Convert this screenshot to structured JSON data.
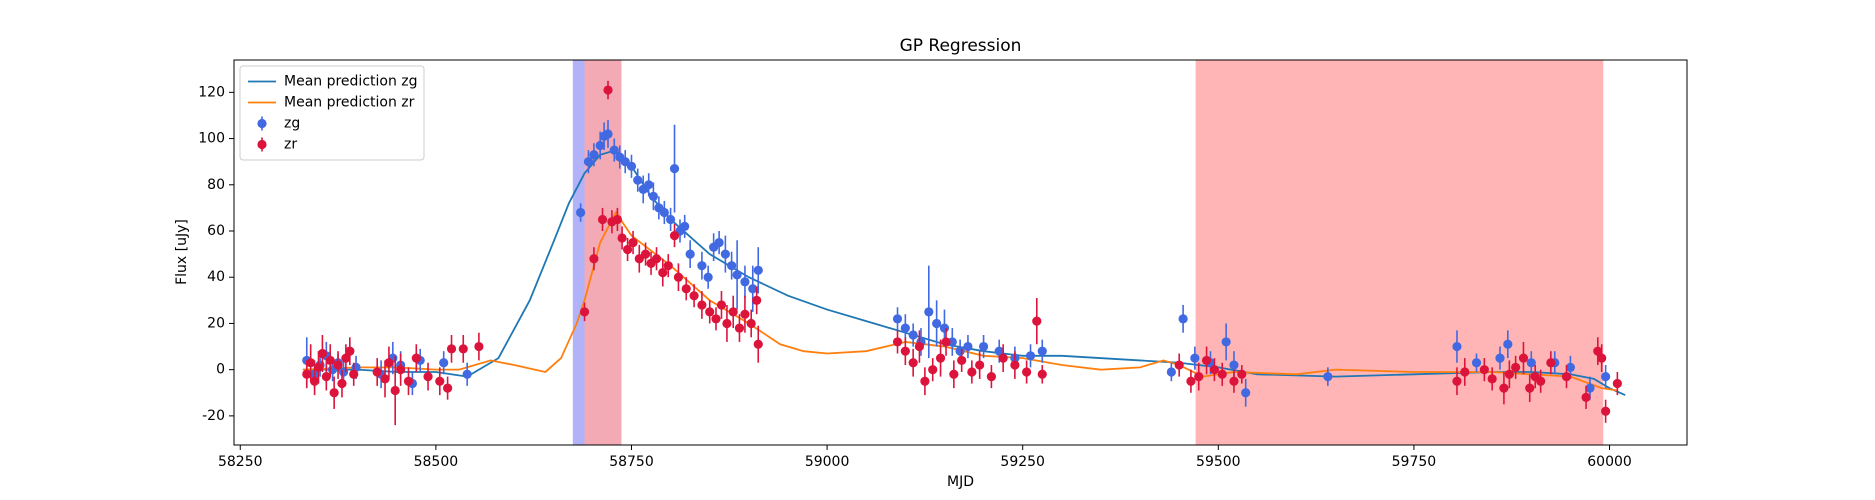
{
  "chart_data": {
    "type": "line",
    "title": "GP Regression",
    "x_label": "MJD",
    "y_label": "Flux [uJy]",
    "xlim": [
      58242,
      60099
    ],
    "ylim": [
      -32.6,
      134
    ],
    "xticks": [
      58250,
      58500,
      58750,
      59000,
      59250,
      59500,
      59750,
      60000
    ],
    "yticks": [
      -20,
      0,
      20,
      40,
      60,
      80,
      100,
      120
    ],
    "legend": "upper left",
    "spans": [
      {
        "xmin": 58675,
        "xmax": 58737,
        "color": "#a5a5f7"
      },
      {
        "xmin": 58690,
        "xmax": 58737,
        "color": "#ffa8a8"
      },
      {
        "xmin": 59471,
        "xmax": 59992,
        "color": "#ffa8a8"
      }
    ],
    "series": [
      {
        "name": "Mean prediction zg",
        "kind": "line",
        "color": "#1f77b4",
        "x": [
          58330,
          58400,
          58450,
          58500,
          58540,
          58580,
          58620,
          58650,
          58670,
          58690,
          58710,
          58730,
          58750,
          58775,
          58800,
          58850,
          58900,
          58950,
          59000,
          59050,
          59100,
          59150,
          59200,
          59250,
          59300,
          59400,
          59450,
          59500,
          59550,
          59650,
          59750,
          59850,
          59900,
          59950,
          59980,
          60000,
          60020
        ],
        "values": [
          0,
          0,
          -1,
          -1,
          -3,
          5,
          30,
          55,
          72,
          85,
          93,
          95,
          88,
          75,
          65,
          50,
          40,
          32,
          26,
          21,
          16,
          11,
          8,
          6,
          6,
          4,
          3,
          1,
          -2,
          -3,
          -2,
          -1,
          -1,
          -2,
          -4,
          -8,
          -11
        ]
      },
      {
        "name": "Mean prediction zr",
        "kind": "line",
        "color": "#ff7f0e",
        "x": [
          58330,
          58400,
          58450,
          58500,
          58530,
          58570,
          58600,
          58640,
          58660,
          58680,
          58690,
          58710,
          58730,
          58750,
          58800,
          58850,
          58900,
          58940,
          58970,
          59000,
          59050,
          59100,
          59150,
          59200,
          59250,
          59300,
          59350,
          59400,
          59430,
          59450,
          59480,
          59520,
          59600,
          59650,
          59750,
          59850,
          59950,
          59990,
          60010
        ],
        "values": [
          0,
          1,
          1,
          0,
          0,
          4,
          2,
          -1,
          5,
          20,
          30,
          55,
          68,
          58,
          45,
          30,
          20,
          11,
          8,
          7,
          8,
          12,
          10,
          6,
          5,
          2,
          0,
          1,
          4,
          2,
          -3,
          -1,
          -2,
          0,
          -1,
          -1,
          -3,
          -8,
          -9
        ]
      },
      {
        "name": "zg",
        "kind": "errorbar",
        "color": "#4169e1",
        "x": [
          58335,
          58345,
          58352,
          58360,
          58368,
          58375,
          58382,
          58390,
          58398,
          58430,
          58445,
          58455,
          58470,
          58480,
          58510,
          58540,
          58685,
          58695,
          58702,
          58710,
          58715,
          58720,
          58728,
          58735,
          58742,
          58750,
          58758,
          58765,
          58772,
          58778,
          58785,
          58792,
          58800,
          58805,
          58812,
          58818,
          58825,
          58840,
          58848,
          58855,
          58862,
          58870,
          58878,
          58885,
          58895,
          58905,
          58912,
          59090,
          59100,
          59110,
          59120,
          59130,
          59140,
          59150,
          59160,
          59170,
          59180,
          59200,
          59220,
          59240,
          59260,
          59275,
          59440,
          59455,
          59470,
          59490,
          59510,
          59520,
          59535,
          59640,
          59805,
          59830,
          59860,
          59870,
          59900,
          59930,
          59950,
          59975,
          59995
        ],
        "values": [
          4,
          -2,
          2,
          6,
          0,
          3,
          -1,
          8,
          1,
          -2,
          5,
          2,
          -6,
          4,
          3,
          -2,
          68,
          90,
          93,
          97,
          101,
          102,
          95,
          92,
          90,
          88,
          82,
          78,
          80,
          75,
          70,
          68,
          65,
          87,
          60,
          62,
          50,
          45,
          40,
          53,
          55,
          50,
          45,
          41,
          38,
          35,
          43,
          22,
          18,
          15,
          12,
          25,
          20,
          18,
          12,
          8,
          10,
          10,
          8,
          5,
          6,
          8,
          -1,
          22,
          5,
          3,
          12,
          2,
          -10,
          -3,
          10,
          3,
          5,
          11,
          3,
          3,
          1,
          -8,
          -3
        ],
        "errors": [
          10,
          6,
          5,
          6,
          5,
          4,
          5,
          4,
          5,
          6,
          7,
          6,
          5,
          5,
          5,
          5,
          4,
          5,
          5,
          6,
          6,
          6,
          5,
          5,
          5,
          5,
          5,
          6,
          5,
          6,
          5,
          5,
          5,
          19,
          5,
          5,
          6,
          6,
          5,
          6,
          5,
          8,
          6,
          15,
          7,
          10,
          10,
          5,
          6,
          5,
          6,
          20,
          10,
          8,
          6,
          5,
          5,
          5,
          5,
          5,
          5,
          5,
          4,
          6,
          5,
          5,
          8,
          6,
          6,
          4,
          7,
          4,
          5,
          6,
          5,
          5,
          5,
          5,
          5
        ]
      },
      {
        "name": "zr",
        "kind": "errorbar",
        "color": "#dc143c",
        "x": [
          58335,
          58340,
          58345,
          58350,
          58355,
          58360,
          58365,
          58370,
          58375,
          58380,
          58385,
          58390,
          58395,
          58425,
          58435,
          58440,
          58448,
          58455,
          58465,
          58475,
          58490,
          58505,
          58515,
          58520,
          58535,
          58555,
          58690,
          58702,
          58713,
          58720,
          58725,
          58732,
          58738,
          58745,
          58752,
          58760,
          58768,
          58775,
          58782,
          58790,
          58797,
          58805,
          58810,
          58820,
          58830,
          58840,
          58850,
          58858,
          58865,
          58872,
          58880,
          58888,
          58895,
          58903,
          58910,
          58912,
          59090,
          59100,
          59110,
          59118,
          59125,
          59135,
          59145,
          59152,
          59162,
          59172,
          59185,
          59195,
          59210,
          59225,
          59240,
          59255,
          59268,
          59275,
          59450,
          59465,
          59475,
          59485,
          59495,
          59505,
          59520,
          59530,
          59805,
          59815,
          59840,
          59850,
          59865,
          59872,
          59880,
          59890,
          59898,
          59905,
          59912,
          59925,
          59945,
          59970,
          59985,
          59990,
          59995,
          60010
        ],
        "values": [
          -2,
          3,
          -5,
          1,
          7,
          -3,
          4,
          -10,
          2,
          -6,
          5,
          8,
          -2,
          -1,
          -4,
          3,
          -9,
          0,
          -5,
          5,
          -3,
          -5,
          -8,
          9,
          9,
          10,
          25,
          48,
          65,
          121,
          64,
          65,
          57,
          52,
          55,
          48,
          50,
          46,
          48,
          42,
          45,
          58,
          40,
          35,
          32,
          28,
          25,
          22,
          28,
          20,
          25,
          18,
          24,
          20,
          30,
          11,
          12,
          8,
          3,
          10,
          -5,
          0,
          5,
          12,
          -2,
          4,
          -1,
          2,
          -3,
          5,
          2,
          -1,
          21,
          -2,
          2,
          -5,
          -3,
          4,
          0,
          -2,
          -5,
          -2,
          -5,
          -1,
          0,
          -4,
          -8,
          -2,
          1,
          5,
          -8,
          -3,
          -5,
          3,
          -3,
          -12,
          8,
          5,
          -18,
          -6
        ],
        "errors": [
          6,
          8,
          6,
          7,
          8,
          6,
          7,
          7,
          6,
          6,
          6,
          6,
          5,
          6,
          8,
          7,
          15,
          7,
          6,
          6,
          6,
          6,
          5,
          6,
          6,
          6,
          4,
          5,
          5,
          4,
          5,
          5,
          5,
          5,
          5,
          6,
          5,
          5,
          5,
          6,
          5,
          5,
          6,
          5,
          5,
          6,
          5,
          5,
          6,
          8,
          7,
          6,
          8,
          6,
          6,
          8,
          5,
          6,
          6,
          7,
          6,
          5,
          8,
          6,
          6,
          5,
          5,
          6,
          5,
          6,
          6,
          5,
          10,
          4,
          5,
          5,
          6,
          6,
          5,
          5,
          5,
          4,
          6,
          6,
          5,
          5,
          7,
          6,
          5,
          7,
          6,
          5,
          5,
          5,
          5,
          5,
          6,
          6,
          5,
          5
        ]
      }
    ]
  }
}
